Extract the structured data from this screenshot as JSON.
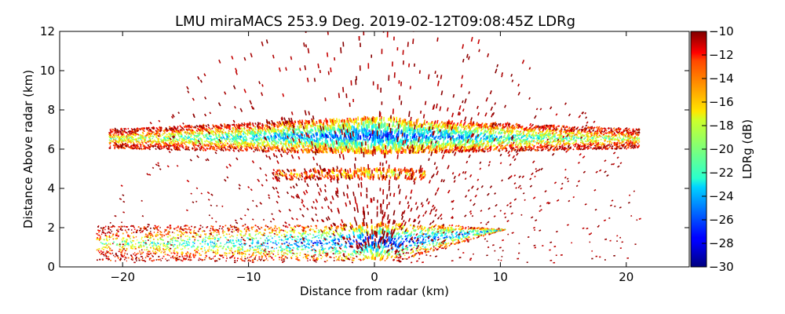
{
  "chart_data": {
    "type": "heatmap",
    "title": "LMU miraMACS 253.9 Deg. 2019-02-12T09:08:45Z  LDRg",
    "xlabel": "Distance from radar (km)",
    "ylabel": "Distance Above radar  (km)",
    "xlim": [
      -25,
      25
    ],
    "ylim": [
      0,
      12
    ],
    "x_ticks": [
      "−20",
      "−10",
      "0",
      "10",
      "20"
    ],
    "x_tick_values": [
      -20,
      -10,
      0,
      10,
      20
    ],
    "y_ticks": [
      "0",
      "2",
      "4",
      "6",
      "8",
      "10",
      "12"
    ],
    "y_tick_values": [
      0,
      2,
      4,
      6,
      8,
      10,
      12
    ],
    "colorbar": {
      "label": "LDRg (dB)",
      "range": [
        -30,
        -10
      ],
      "ticks": [
        "−30",
        "−28",
        "−26",
        "−24",
        "−22",
        "−20",
        "−18",
        "−16",
        "−14",
        "−12",
        "−10"
      ],
      "tick_values": [
        -30,
        -28,
        -26,
        -24,
        -22,
        -20,
        -18,
        -16,
        -14,
        -12,
        -10
      ],
      "colormap": "jet"
    },
    "grid": false,
    "scan": {
      "kind": "RHI",
      "azimuth_deg": 253.9,
      "time": "2019-02-12T09:08:45Z",
      "layers": [
        {
          "name": "upper cloud layer",
          "height_km": [
            5.7,
            7.5
          ],
          "x_km": [
            -21,
            21
          ],
          "ldr_core_db": -27,
          "ldr_edge_db": -12
        },
        {
          "name": "thin layer",
          "height_km": [
            4.4,
            4.9
          ],
          "x_km": [
            -8,
            4
          ],
          "ldr_core_db": -18,
          "ldr_edge_db": -12
        },
        {
          "name": "lower cloud layer",
          "height_km": [
            0.3,
            2.1
          ],
          "x_km": [
            -22,
            11
          ],
          "ldr_core_db": -28,
          "ldr_edge_db": -12
        },
        {
          "name": "sparse speckle",
          "height_km": [
            0,
            12
          ],
          "x_km": [
            -21,
            21
          ],
          "ldr_core_db": -10,
          "ldr_edge_db": -10
        }
      ]
    }
  }
}
